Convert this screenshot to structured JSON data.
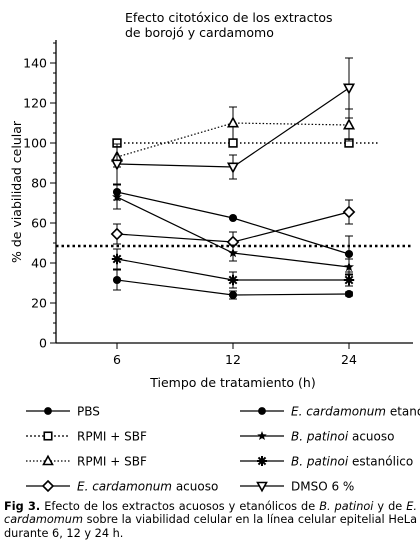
{
  "chart_data": {
    "type": "line",
    "title_lines": [
      "Efecto citotóxico de los extractos",
      "de borojó y cardamomo"
    ],
    "xlabel": "Tiempo de tratamiento (h)",
    "ylabel": "% de viabilidad celular",
    "x_categories": [
      "6",
      "12",
      "24"
    ],
    "ylim": [
      0,
      150
    ],
    "yticks": [
      0,
      20,
      40,
      60,
      80,
      100,
      120,
      140
    ],
    "reference_lines": [
      {
        "y": 100,
        "style": "dotted"
      },
      {
        "y": 48.5,
        "style": "dotted-bold"
      }
    ],
    "series": [
      {
        "name": "PBS",
        "marker": "circle-filled",
        "line": "solid",
        "values": [
          31.5,
          24,
          24.5
        ],
        "errors": [
          5,
          2,
          1
        ]
      },
      {
        "name": "RPMI + SBF",
        "marker": "square-open",
        "line": "none",
        "values": [
          100,
          100,
          100
        ],
        "errors": [
          0,
          0,
          0
        ]
      },
      {
        "name": "RPMI + SBF",
        "marker": "triangle-up-open",
        "line": "dotted",
        "values": [
          93,
          110,
          109
        ],
        "errors": [
          5,
          8,
          8
        ]
      },
      {
        "name": "E. cardamonum acuoso",
        "marker": "diamond-open",
        "line": "solid",
        "values": [
          54.5,
          50.5,
          65.5
        ],
        "errors": [
          5,
          5,
          6
        ]
      },
      {
        "name": "E. cardamonum etanólico",
        "marker": "circle-filled",
        "line": "solid",
        "values": [
          75.5,
          62.5,
          44.5
        ],
        "errors": [
          4,
          0,
          9
        ]
      },
      {
        "name": "B. patinoi acuoso",
        "marker": "star-filled",
        "line": "solid",
        "values": [
          73,
          45,
          38
        ],
        "errors": [
          6,
          4,
          4
        ]
      },
      {
        "name": "B. patinoi estanólico",
        "marker": "asterisk",
        "line": "solid",
        "values": [
          42,
          31.5,
          31.5
        ],
        "errors": [
          5,
          4,
          3
        ]
      },
      {
        "name": "DMSO 6 %",
        "marker": "triangle-down-open",
        "line": "solid",
        "values": [
          89.5,
          88,
          127.5
        ],
        "errors": [
          10,
          6,
          15
        ]
      }
    ]
  },
  "legend": [
    {
      "marker": "circle-filled",
      "text": "PBS",
      "italic_part": ""
    },
    {
      "marker": "circle-filled",
      "text": " etanólico",
      "italic_part": "E. cardamonum"
    },
    {
      "marker": "square-open",
      "text": "RPMI + SBF",
      "italic_part": ""
    },
    {
      "marker": "star-filled",
      "text": " acuoso",
      "italic_part": "B. patinoi"
    },
    {
      "marker": "triangle-up-open",
      "text": "RPMI + SBF",
      "italic_part": ""
    },
    {
      "marker": "asterisk",
      "text": " estanólico",
      "italic_part": "B. patinoi"
    },
    {
      "marker": "diamond-open",
      "text": " acuoso",
      "italic_part": "E. cardamonum"
    },
    {
      "marker": "triangle-down-open",
      "text": "DMSO 6 %",
      "italic_part": ""
    }
  ],
  "caption": {
    "label": "Fig 3.",
    "parts": [
      " Efecto de los extractos acuosos y etanólicos de ",
      "B. patinoi",
      " y de ",
      "E. cardamomum",
      " sobre la viabilidad celular en la línea celular epitelial HeLa durante 6, 12 y 24 h."
    ]
  }
}
